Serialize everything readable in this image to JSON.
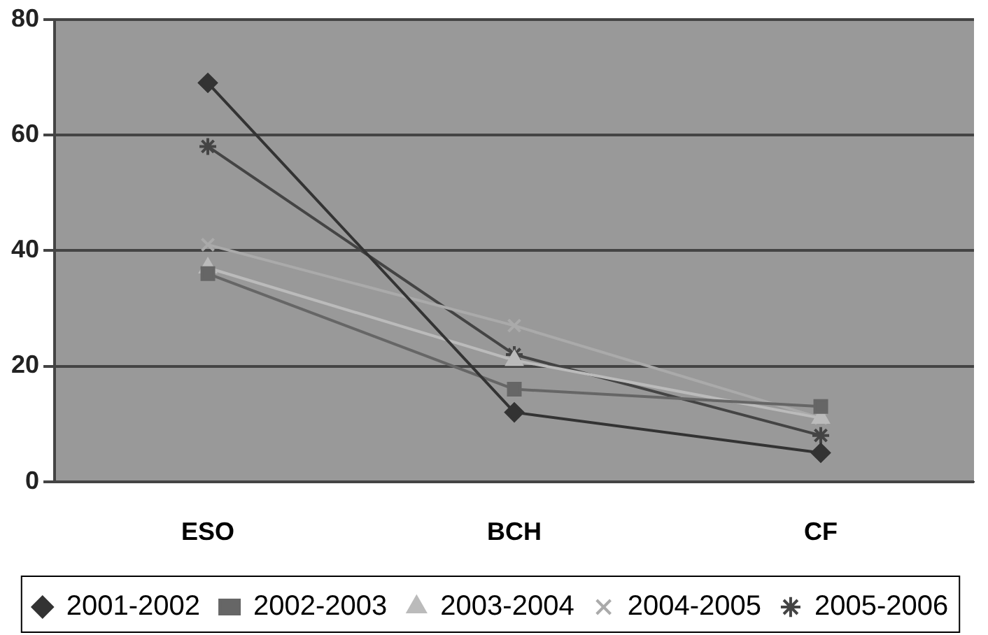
{
  "chart_data": {
    "type": "line",
    "categories": [
      "ESO",
      "BCH",
      "CF"
    ],
    "ylim": [
      0,
      80
    ],
    "yticks": [
      0,
      20,
      40,
      60,
      80
    ],
    "grid": "y",
    "legend": "bottom",
    "series": [
      {
        "name": "2001-2002",
        "color": "#333333",
        "marker": "diamond",
        "values": [
          69,
          12,
          5
        ]
      },
      {
        "name": "2002-2003",
        "color": "#666666",
        "marker": "square",
        "values": [
          36,
          16,
          13
        ]
      },
      {
        "name": "2003-2004",
        "color": "#bbbbbb",
        "marker": "triangle",
        "values": [
          37,
          21,
          11
        ]
      },
      {
        "name": "2004-2005",
        "color": "#aaaaaa",
        "marker": "cross",
        "values": [
          41,
          27,
          11
        ]
      },
      {
        "name": "2005-2006",
        "color": "#444444",
        "marker": "cross",
        "values": [
          58,
          22,
          8
        ]
      }
    ]
  }
}
